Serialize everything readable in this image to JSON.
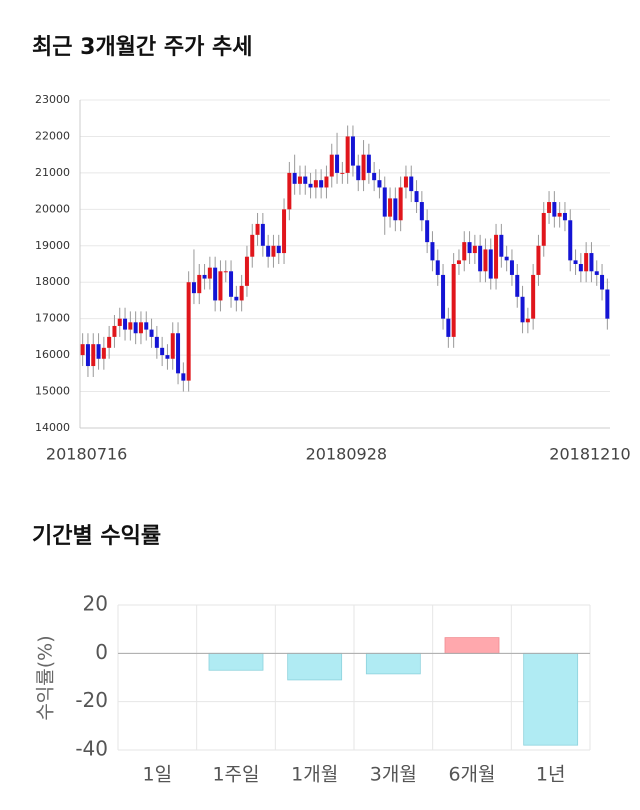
{
  "chart_data": [
    {
      "type": "candlestick",
      "title": "최근 3개월간 주가 추세",
      "categories": [
        "20180716",
        null,
        null,
        null,
        null,
        null,
        null,
        null,
        null,
        null,
        null,
        null,
        null,
        null,
        null,
        null,
        null,
        null,
        null,
        null,
        null,
        null,
        null,
        null,
        null,
        null,
        null,
        null,
        null,
        null,
        null,
        null,
        null,
        null,
        null,
        null,
        null,
        null,
        null,
        null,
        null,
        null,
        null,
        null,
        null,
        null,
        null,
        null,
        null,
        "20180928",
        null,
        null,
        null,
        null,
        null,
        null,
        null,
        null,
        null,
        null,
        null,
        null,
        null,
        null,
        null,
        null,
        null,
        null,
        null,
        null,
        null,
        null,
        null,
        null,
        null,
        null,
        null,
        null,
        null,
        null,
        null,
        null,
        null,
        null,
        null,
        null,
        null,
        null,
        null,
        null,
        null,
        null,
        null,
        null,
        null,
        null,
        "20181210",
        null,
        null,
        null
      ],
      "open": [
        16000,
        16300,
        15700,
        16300,
        15900,
        16200,
        16500,
        16800,
        17000,
        16700,
        16900,
        16600,
        16900,
        16700,
        16500,
        16200,
        16000,
        15900,
        16600,
        15500,
        15300,
        18000,
        17700,
        18200,
        18100,
        18400,
        17500,
        18300,
        18300,
        17600,
        17500,
        17900,
        18700,
        19300,
        19600,
        19000,
        18700,
        19000,
        18800,
        20000,
        21000,
        20700,
        20900,
        20700,
        20600,
        20800,
        20600,
        20900,
        21500,
        21000,
        21000,
        22000,
        21200,
        20800,
        21500,
        21000,
        20800,
        20600,
        19800,
        20300,
        19700,
        20600,
        20900,
        20500,
        20200,
        19700,
        19100,
        18600,
        18200,
        17000,
        16500,
        18500,
        18600,
        19100,
        18800,
        19000,
        18300,
        18900,
        18100,
        19300,
        18700,
        18600,
        18200,
        17600,
        16900,
        17000,
        18200,
        19000,
        19900,
        20200,
        19800,
        19900,
        19700,
        18600,
        18500,
        18300,
        18800,
        18300,
        18200,
        17800
      ],
      "close": [
        16300,
        15700,
        16300,
        15900,
        16200,
        16500,
        16800,
        17000,
        16700,
        16900,
        16600,
        16900,
        16700,
        16500,
        16200,
        16000,
        15900,
        16600,
        15500,
        15300,
        18000,
        17700,
        18200,
        18100,
        18400,
        17500,
        18300,
        18300,
        17600,
        17500,
        17900,
        18700,
        19300,
        19600,
        19000,
        18700,
        19000,
        18800,
        20000,
        21000,
        20700,
        20900,
        20700,
        20600,
        20800,
        20600,
        20900,
        21500,
        21000,
        21000,
        22000,
        21200,
        20800,
        21500,
        21000,
        20800,
        20600,
        19800,
        20300,
        19700,
        20600,
        20900,
        20500,
        20200,
        19700,
        19100,
        18600,
        18200,
        17000,
        16500,
        18500,
        18600,
        19100,
        18800,
        19000,
        18300,
        18900,
        18100,
        19300,
        18700,
        18600,
        18200,
        17600,
        16900,
        17000,
        18200,
        19000,
        19900,
        20200,
        19800,
        19900,
        19700,
        18600,
        18500,
        18300,
        18800,
        18300,
        18200,
        17800,
        17000
      ],
      "high": [
        16600,
        16600,
        16600,
        16600,
        16500,
        16800,
        17100,
        17300,
        17300,
        17200,
        17200,
        17200,
        17200,
        17000,
        16800,
        16500,
        16300,
        16900,
        16900,
        15800,
        18300,
        18900,
        18500,
        18500,
        18700,
        18700,
        18600,
        18600,
        18600,
        17900,
        18200,
        19000,
        19600,
        19900,
        19900,
        19300,
        19300,
        19300,
        20300,
        21300,
        21500,
        21200,
        21200,
        21000,
        21100,
        21100,
        21200,
        21800,
        22100,
        21300,
        22300,
        22300,
        21500,
        21900,
        21800,
        21300,
        21100,
        20900,
        20600,
        20600,
        20900,
        21200,
        21200,
        20800,
        20500,
        20000,
        19400,
        18900,
        18500,
        17300,
        18800,
        18900,
        19400,
        19400,
        19300,
        19300,
        19200,
        19200,
        19600,
        19600,
        19000,
        18900,
        18500,
        17900,
        17300,
        18500,
        19300,
        20200,
        20500,
        20500,
        20200,
        20200,
        20000,
        18900,
        18800,
        19100,
        19100,
        18600,
        18500,
        18100
      ],
      "low": [
        15700,
        15400,
        15400,
        15600,
        15600,
        15900,
        16200,
        16500,
        16400,
        16400,
        16300,
        16300,
        16400,
        16200,
        15900,
        15700,
        15600,
        15600,
        15200,
        15000,
        15000,
        17400,
        17400,
        17800,
        17800,
        17200,
        17200,
        18000,
        17300,
        17200,
        17200,
        17600,
        18400,
        19000,
        18700,
        18400,
        18400,
        18500,
        18500,
        19700,
        20400,
        20400,
        20400,
        20300,
        20300,
        20300,
        20300,
        20600,
        20700,
        20700,
        20700,
        20900,
        20500,
        20500,
        20700,
        20500,
        20300,
        19300,
        19500,
        19400,
        19400,
        20300,
        20200,
        19900,
        19400,
        18800,
        18300,
        17900,
        16700,
        16200,
        16200,
        18200,
        18300,
        18500,
        18500,
        18000,
        18000,
        17800,
        17800,
        18400,
        18300,
        17900,
        17300,
        16600,
        16600,
        16700,
        17900,
        18700,
        19600,
        19500,
        19500,
        19400,
        18300,
        18200,
        18000,
        18000,
        18000,
        17900,
        17500,
        16700
      ],
      "up_color": "#e0161c",
      "down_color": "#1414d4",
      "ylim": [
        14000,
        23000
      ],
      "yticks": [
        14000,
        15000,
        16000,
        17000,
        18000,
        19000,
        20000,
        21000,
        22000,
        23000
      ],
      "grid": true
    },
    {
      "type": "bar",
      "title": "기간별 수익률",
      "y_label": "수익률(%)",
      "categories": [
        "1일",
        "1주일",
        "1개월",
        "3개월",
        "6개월",
        "1년"
      ],
      "values": [
        0,
        -7,
        -11,
        -8.5,
        6.5,
        -38
      ],
      "positive_color": "#ffa8ad",
      "negative_color": "#b0ebf3",
      "ylim": [
        -40,
        20
      ],
      "yticks": [
        -40,
        -20,
        0,
        20
      ],
      "grid": true
    }
  ]
}
